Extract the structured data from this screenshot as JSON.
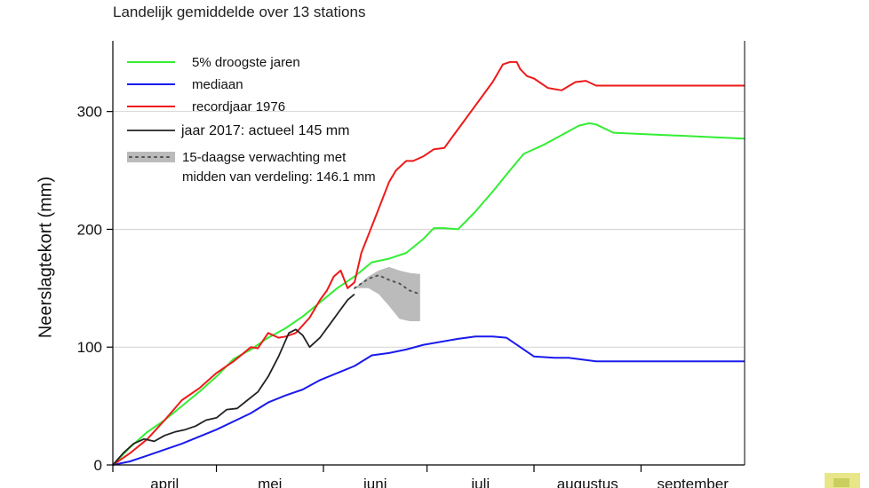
{
  "chart_data": {
    "type": "line",
    "title": "Landelijk gemiddelde over 13 stations",
    "xlabel": "",
    "ylabel": "Neerslagtekort (mm)",
    "xlim": [
      0,
      183
    ],
    "ylim": [
      0,
      360
    ],
    "yticks": [
      0,
      100,
      200,
      300
    ],
    "grid": "horizontal",
    "legend_position": "top-left",
    "months": [
      {
        "label": "april",
        "start": 0,
        "end": 30
      },
      {
        "label": "mei",
        "start": 30,
        "end": 61
      },
      {
        "label": "juni",
        "start": 61,
        "end": 91
      },
      {
        "label": "juli",
        "start": 91,
        "end": 122
      },
      {
        "label": "augustus",
        "start": 122,
        "end": 153
      },
      {
        "label": "september",
        "start": 153,
        "end": 183
      }
    ],
    "series": [
      {
        "name": "5% droogste jaren",
        "color": "#33ee33",
        "points": [
          [
            0,
            0
          ],
          [
            5,
            15
          ],
          [
            10,
            28
          ],
          [
            15,
            38
          ],
          [
            20,
            50
          ],
          [
            25,
            62
          ],
          [
            30,
            75
          ],
          [
            35,
            90
          ],
          [
            40,
            98
          ],
          [
            45,
            108
          ],
          [
            50,
            116
          ],
          [
            55,
            126
          ],
          [
            60,
            138
          ],
          [
            65,
            150
          ],
          [
            70,
            160
          ],
          [
            75,
            172
          ],
          [
            80,
            175
          ],
          [
            85,
            180
          ],
          [
            90,
            192
          ],
          [
            93,
            201
          ],
          [
            96,
            201
          ],
          [
            100,
            200
          ],
          [
            105,
            215
          ],
          [
            110,
            232
          ],
          [
            115,
            250
          ],
          [
            119,
            264
          ],
          [
            125,
            272
          ],
          [
            130,
            280
          ],
          [
            135,
            288
          ],
          [
            138,
            290
          ],
          [
            140,
            289
          ],
          [
            145,
            282
          ],
          [
            183,
            277
          ]
        ]
      },
      {
        "name": "mediaan",
        "color": "#1a1aee",
        "points": [
          [
            0,
            0
          ],
          [
            5,
            3
          ],
          [
            10,
            8
          ],
          [
            20,
            18
          ],
          [
            30,
            30
          ],
          [
            40,
            44
          ],
          [
            45,
            53
          ],
          [
            50,
            59
          ],
          [
            55,
            64
          ],
          [
            60,
            72
          ],
          [
            70,
            84
          ],
          [
            75,
            93
          ],
          [
            80,
            95
          ],
          [
            85,
            98
          ],
          [
            90,
            102
          ],
          [
            100,
            107
          ],
          [
            105,
            109
          ],
          [
            110,
            109
          ],
          [
            114,
            108
          ],
          [
            118,
            100
          ],
          [
            122,
            92
          ],
          [
            128,
            91
          ],
          [
            132,
            91
          ],
          [
            137,
            89
          ],
          [
            140,
            88
          ],
          [
            183,
            88
          ]
        ]
      },
      {
        "name": "recordjaar 1976",
        "color": "#ee1a1a",
        "points": [
          [
            0,
            0
          ],
          [
            5,
            10
          ],
          [
            10,
            22
          ],
          [
            15,
            38
          ],
          [
            20,
            55
          ],
          [
            25,
            65
          ],
          [
            30,
            78
          ],
          [
            35,
            88
          ],
          [
            40,
            100
          ],
          [
            42,
            99
          ],
          [
            45,
            112
          ],
          [
            48,
            108
          ],
          [
            50,
            109
          ],
          [
            53,
            112
          ],
          [
            57,
            125
          ],
          [
            60,
            140
          ],
          [
            62,
            148
          ],
          [
            64,
            160
          ],
          [
            66,
            165
          ],
          [
            68,
            150
          ],
          [
            70,
            155
          ],
          [
            72,
            180
          ],
          [
            76,
            210
          ],
          [
            80,
            240
          ],
          [
            82,
            250
          ],
          [
            85,
            258
          ],
          [
            87,
            258
          ],
          [
            90,
            262
          ],
          [
            93,
            268
          ],
          [
            96,
            269
          ],
          [
            100,
            285
          ],
          [
            105,
            305
          ],
          [
            110,
            325
          ],
          [
            113,
            340
          ],
          [
            115,
            342
          ],
          [
            117,
            342
          ],
          [
            118,
            336
          ],
          [
            120,
            330
          ],
          [
            122,
            328
          ],
          [
            126,
            320
          ],
          [
            130,
            318
          ],
          [
            134,
            325
          ],
          [
            137,
            326
          ],
          [
            140,
            322
          ],
          [
            183,
            322
          ]
        ]
      },
      {
        "name": "jaar 2017: actueel 145 mm",
        "color": "#222222",
        "points": [
          [
            0,
            0
          ],
          [
            3,
            10
          ],
          [
            6,
            18
          ],
          [
            9,
            22
          ],
          [
            12,
            20
          ],
          [
            15,
            25
          ],
          [
            18,
            28
          ],
          [
            21,
            30
          ],
          [
            24,
            33
          ],
          [
            27,
            38
          ],
          [
            30,
            40
          ],
          [
            33,
            47
          ],
          [
            36,
            48
          ],
          [
            39,
            55
          ],
          [
            42,
            62
          ],
          [
            45,
            75
          ],
          [
            48,
            92
          ],
          [
            51,
            112
          ],
          [
            53,
            115
          ],
          [
            55,
            110
          ],
          [
            57,
            100
          ],
          [
            60,
            108
          ],
          [
            63,
            120
          ],
          [
            66,
            132
          ],
          [
            68,
            140
          ],
          [
            70,
            145
          ]
        ]
      }
    ],
    "forecast": {
      "name": "15-daagse verwachting met",
      "subtitle": "midden van verdeling: 146.1 mm",
      "color": "#bbbbbb",
      "mean_points": [
        [
          70,
          150
        ],
        [
          74,
          158
        ],
        [
          77,
          161
        ],
        [
          80,
          157
        ],
        [
          83,
          154
        ],
        [
          86,
          148
        ],
        [
          89,
          145
        ]
      ],
      "lower_points": [
        [
          70,
          150
        ],
        [
          74,
          150
        ],
        [
          77,
          145
        ],
        [
          80,
          135
        ],
        [
          83,
          124
        ],
        [
          86,
          122
        ],
        [
          89,
          122
        ]
      ],
      "upper_points": [
        [
          70,
          150
        ],
        [
          74,
          160
        ],
        [
          77,
          165
        ],
        [
          80,
          168
        ],
        [
          83,
          165
        ],
        [
          86,
          163
        ],
        [
          89,
          162
        ]
      ]
    }
  }
}
